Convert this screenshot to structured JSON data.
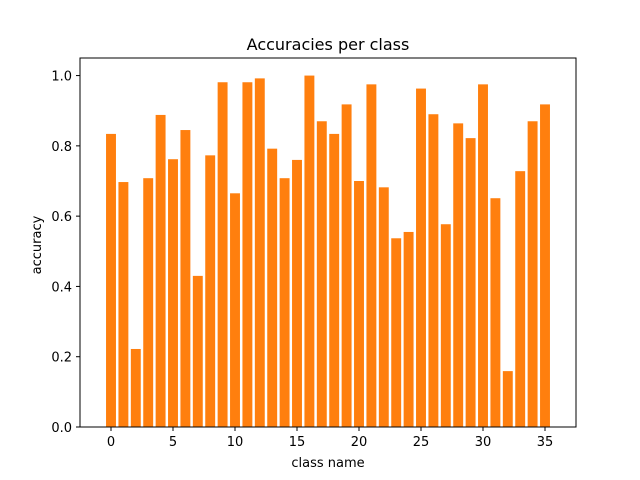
{
  "chart_data": {
    "type": "bar",
    "title": "Accuracies per class",
    "xlabel": "class name",
    "ylabel": "accuracy",
    "x": [
      0,
      1,
      2,
      3,
      4,
      5,
      6,
      7,
      8,
      9,
      10,
      11,
      12,
      13,
      14,
      15,
      16,
      17,
      18,
      19,
      20,
      21,
      22,
      23,
      24,
      25,
      26,
      27,
      28,
      29,
      30,
      31,
      32,
      33,
      34,
      35
    ],
    "values": [
      0.834,
      0.697,
      0.222,
      0.708,
      0.888,
      0.762,
      0.845,
      0.43,
      0.773,
      0.981,
      0.665,
      0.981,
      0.992,
      0.792,
      0.708,
      0.76,
      1.0,
      0.87,
      0.834,
      0.918,
      0.7,
      0.975,
      0.682,
      0.537,
      0.555,
      0.963,
      0.89,
      0.577,
      0.864,
      0.822,
      0.975,
      0.651,
      0.159,
      0.728,
      0.87,
      0.918
    ],
    "xlim": [
      -2.5,
      37.5
    ],
    "ylim": [
      0,
      1.05
    ],
    "xticks": [
      0,
      5,
      10,
      15,
      20,
      25,
      30,
      35
    ],
    "xtick_labels": [
      "0",
      "5",
      "10",
      "15",
      "20",
      "25",
      "30",
      "35"
    ],
    "yticks": [
      0.0,
      0.2,
      0.4,
      0.6,
      0.8,
      1.0
    ],
    "ytick_labels": [
      "0.0",
      "0.2",
      "0.4",
      "0.6",
      "0.8",
      "1.0"
    ],
    "bar_color": "#ff7f0e",
    "grid": false,
    "legend": "none"
  }
}
